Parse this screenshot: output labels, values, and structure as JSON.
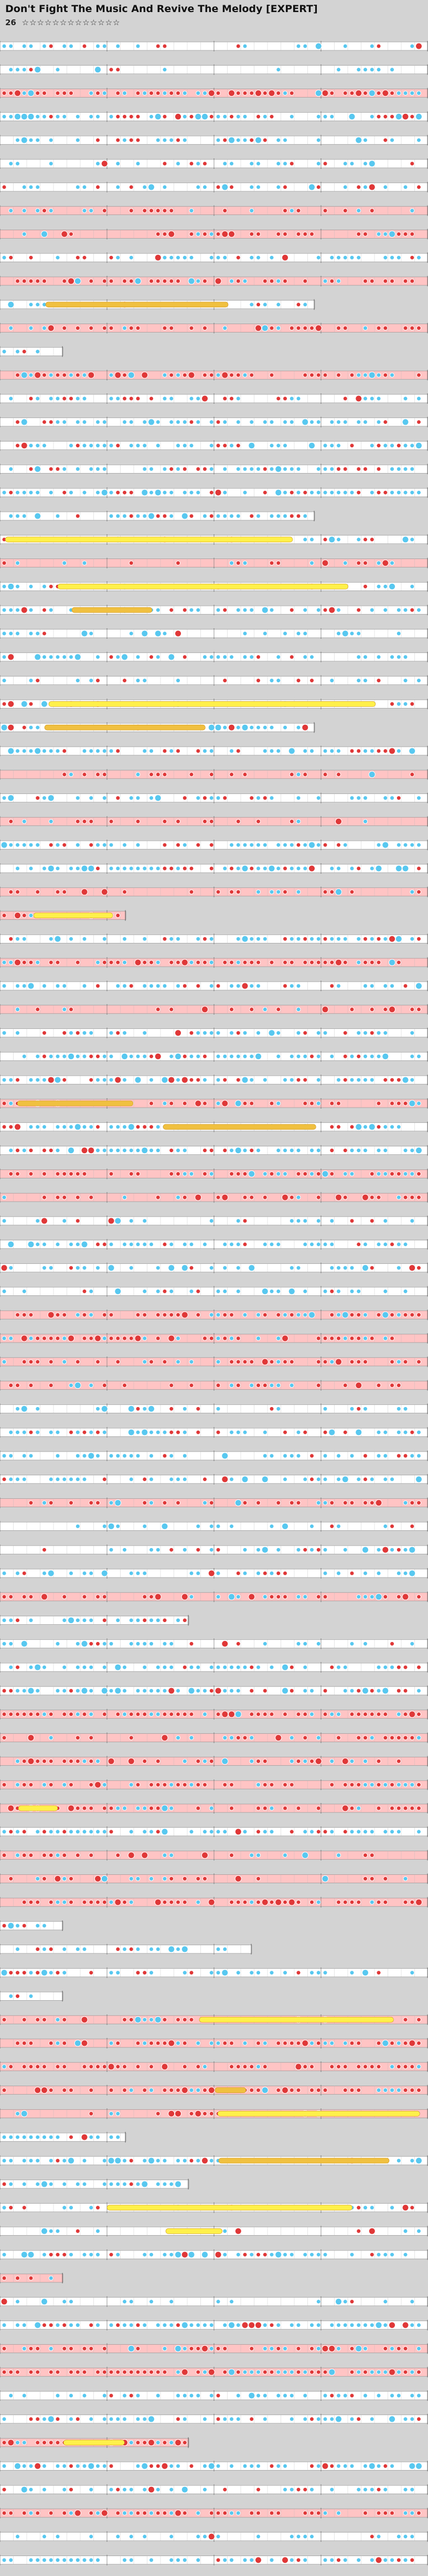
{
  "song": {
    "title": "Don't Fight The Music And Revive The Melody [EXPERT]",
    "level_label": "26",
    "stars": "☆☆☆☆☆☆☆☆☆☆☆☆☆",
    "difficulty": "EXPERT"
  },
  "colors": {
    "background": "#d3d3d3",
    "tap_note": "#58c8f0",
    "red_note": "#e03838",
    "hold_note": "#f0c040",
    "yellow_hold": "#fff04a",
    "lane_red": "#ffc4c4",
    "lane_white": "#ffffff",
    "measure_text": "#333333",
    "bpm_text": "#7040c0"
  },
  "chart": {
    "total_rows": 108,
    "measures_per_row": 4
  }
}
